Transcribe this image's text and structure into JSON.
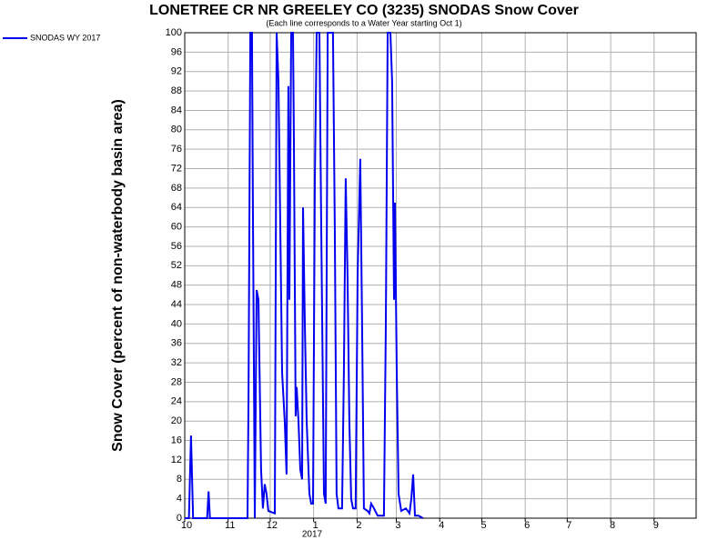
{
  "chart_data": {
    "type": "line",
    "title": "LONETREE CR NR GREELEY CO (3235) SNODAS Snow Cover",
    "subtitle": "(Each line corresponds to a Water Year starting Oct 1)",
    "y_label": "Snow Cover (percent of non-waterbody basin area)",
    "x_annotation": "2017",
    "x": [
      0,
      3,
      4.5,
      6,
      16,
      17,
      18,
      44.8,
      45.5,
      46.8,
      48,
      48.7,
      50,
      51.3,
      52.6,
      54.5,
      55.8,
      57.1,
      58.4,
      59.7,
      64.3,
      65.6,
      66.9,
      68.2,
      69.5,
      71.4,
      72.7,
      74,
      74.7,
      76,
      77.3,
      77.9,
      79.2,
      79.9,
      81.2,
      82.5,
      83.8,
      84.4,
      85.7,
      87,
      89,
      90.3,
      91.6,
      92.9,
      94.2,
      96.1,
      97.4,
      99.4,
      100.6,
      102,
      105.8,
      107.1,
      108.4,
      109.7,
      112.3,
      113.6,
      114.9,
      116.2,
      117.5,
      118.8,
      120.1,
      122,
      123.4,
      125.3,
      126.6,
      127.9,
      130.5,
      131.8,
      133.1,
      135.1,
      137.7,
      142.2,
      143.5,
      144.8,
      146.8,
      148,
      149.4,
      150,
      151.3,
      152.6,
      154.5,
      157.8,
      160.4,
      161.7,
      163,
      164.3,
      166.9,
      170
    ],
    "series": [
      {
        "name": "SNODAS WY 2017",
        "color": "#0000ee",
        "values": [
          0,
          0,
          17,
          0,
          0,
          5.5,
          0,
          0,
          25,
          100,
          100,
          62,
          0,
          47,
          45,
          10,
          2,
          7,
          5,
          1.5,
          1,
          100,
          90,
          60,
          30,
          20,
          9,
          89,
          45,
          100,
          100,
          80,
          21,
          27,
          20,
          10,
          8,
          64,
          40,
          20,
          5,
          3,
          3,
          70,
          100,
          100,
          60,
          5,
          3,
          100,
          100,
          60,
          5,
          2,
          2,
          30,
          70,
          50,
          20,
          4,
          2,
          2,
          50,
          74,
          40,
          2,
          1.5,
          1,
          3,
          2,
          0.5,
          0.5,
          40,
          100,
          100,
          90,
          45,
          65,
          30,
          5,
          1.5,
          2,
          1,
          4,
          9,
          0.5,
          0.5,
          0
        ]
      }
    ],
    "xlim": [
      0,
      365
    ],
    "xticks": [
      {
        "value": 0,
        "label": "10"
      },
      {
        "value": 31,
        "label": "11"
      },
      {
        "value": 61,
        "label": "12"
      },
      {
        "value": 92,
        "label": "1"
      },
      {
        "value": 123,
        "label": "2"
      },
      {
        "value": 151,
        "label": "3"
      },
      {
        "value": 182,
        "label": "4"
      },
      {
        "value": 212,
        "label": "5"
      },
      {
        "value": 243,
        "label": "6"
      },
      {
        "value": 273,
        "label": "7"
      },
      {
        "value": 304,
        "label": "8"
      },
      {
        "value": 335,
        "label": "9"
      }
    ],
    "ylim": [
      0,
      100
    ],
    "yticks": [
      0,
      4,
      8,
      12,
      16,
      20,
      24,
      28,
      32,
      36,
      40,
      44,
      48,
      52,
      56,
      60,
      64,
      68,
      72,
      76,
      80,
      84,
      88,
      92,
      96,
      100
    ],
    "grid": true
  }
}
